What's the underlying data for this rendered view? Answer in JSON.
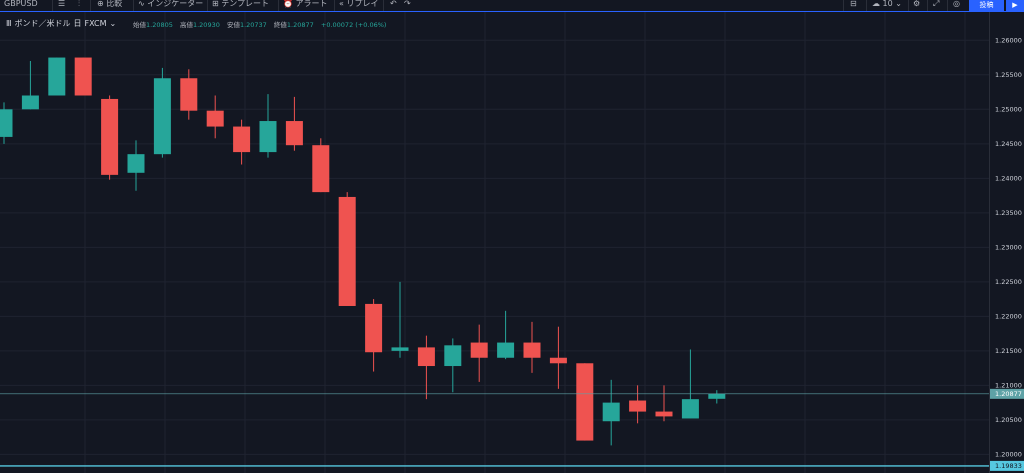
{
  "toolbar": {
    "symbol": "GBPUSD",
    "compare": "比較",
    "indicators": "インジケーター",
    "templates": "テンプレート",
    "alert": "アラート",
    "replay": "リプレイ",
    "layout_count": "10",
    "publish": "投稿"
  },
  "legend": {
    "instrument": "ポンド／米ドル",
    "timeframe": "日",
    "source": "FXCM",
    "open_label": "始値",
    "open": "1.20805",
    "high_label": "高値",
    "high": "1.20930",
    "low_label": "安値",
    "low": "1.20737",
    "close_label": "終値",
    "close": "1.20877",
    "change": "+0.00072 (+0.06%)"
  },
  "colors": {
    "background": "#131722",
    "grid": "#1f2330",
    "up": "#26a69a",
    "down": "#ef5350",
    "accent": "#2962ff",
    "price_line": "#5ea2a6",
    "bottom_line": "#56c8e0"
  },
  "icons": [
    "chart-type-icon",
    "indicator-icon",
    "compare-icon",
    "alert-icon",
    "replay-icon",
    "undo-icon",
    "layout-icon",
    "settings-icon",
    "fullscreen-icon",
    "snapshot-icon",
    "play-icon"
  ],
  "price_scale": {
    "labels": [
      "1.26000",
      "1.25500",
      "1.25000",
      "1.24500",
      "1.24000",
      "1.23500",
      "1.23000",
      "1.22500",
      "1.22000",
      "1.21500",
      "1.21000",
      "1.20500",
      "1.20000"
    ],
    "current_price": "1.20877",
    "bottom_price": "1.19833"
  },
  "chart_data": {
    "type": "candlestick",
    "ylim": [
      1.1973,
      1.2641
    ],
    "candles": [
      {
        "o": 1.246,
        "h": 1.251,
        "l": 1.245,
        "c": 1.25
      },
      {
        "o": 1.25,
        "h": 1.257,
        "l": 1.25,
        "c": 1.252
      },
      {
        "o": 1.252,
        "h": 1.2575,
        "l": 1.252,
        "c": 1.2575
      },
      {
        "o": 1.2575,
        "h": 1.2575,
        "l": 1.252,
        "c": 1.252
      },
      {
        "o": 1.2515,
        "h": 1.252,
        "l": 1.2398,
        "c": 1.2405
      },
      {
        "o": 1.2408,
        "h": 1.2455,
        "l": 1.2382,
        "c": 1.2435
      },
      {
        "o": 1.2435,
        "h": 1.256,
        "l": 1.243,
        "c": 1.2545
      },
      {
        "o": 1.2545,
        "h": 1.2558,
        "l": 1.2485,
        "c": 1.2498
      },
      {
        "o": 1.2498,
        "h": 1.252,
        "l": 1.2458,
        "c": 1.2475
      },
      {
        "o": 1.2475,
        "h": 1.2485,
        "l": 1.242,
        "c": 1.2438
      },
      {
        "o": 1.2438,
        "h": 1.2522,
        "l": 1.243,
        "c": 1.2483
      },
      {
        "o": 1.2483,
        "h": 1.2518,
        "l": 1.244,
        "c": 1.2448
      },
      {
        "o": 1.2448,
        "h": 1.2458,
        "l": 1.238,
        "c": 1.238
      },
      {
        "o": 1.2373,
        "h": 1.238,
        "l": 1.2215,
        "c": 1.2215
      },
      {
        "o": 1.2218,
        "h": 1.2225,
        "l": 1.212,
        "c": 1.2148
      },
      {
        "o": 1.215,
        "h": 1.225,
        "l": 1.214,
        "c": 1.2155
      },
      {
        "o": 1.2155,
        "h": 1.2172,
        "l": 1.208,
        "c": 1.2128
      },
      {
        "o": 1.2128,
        "h": 1.2168,
        "l": 1.209,
        "c": 1.2158
      },
      {
        "o": 1.2162,
        "h": 1.2188,
        "l": 1.2105,
        "c": 1.214
      },
      {
        "o": 1.214,
        "h": 1.2208,
        "l": 1.2138,
        "c": 1.2162
      },
      {
        "o": 1.2162,
        "h": 1.2192,
        "l": 1.2118,
        "c": 1.214
      },
      {
        "o": 1.214,
        "h": 1.2185,
        "l": 1.2095,
        "c": 1.2132
      },
      {
        "o": 1.2132,
        "h": 1.2132,
        "l": 1.202,
        "c": 1.202
      },
      {
        "o": 1.2048,
        "h": 1.2108,
        "l": 1.2013,
        "c": 1.2075
      },
      {
        "o": 1.2078,
        "h": 1.21,
        "l": 1.2045,
        "c": 1.2062
      },
      {
        "o": 1.2062,
        "h": 1.21,
        "l": 1.2048,
        "c": 1.2055
      },
      {
        "o": 1.2052,
        "h": 1.2152,
        "l": 1.2052,
        "c": 1.208
      },
      {
        "o": 1.20805,
        "h": 1.2093,
        "l": 1.20737,
        "c": 1.20877
      }
    ]
  }
}
